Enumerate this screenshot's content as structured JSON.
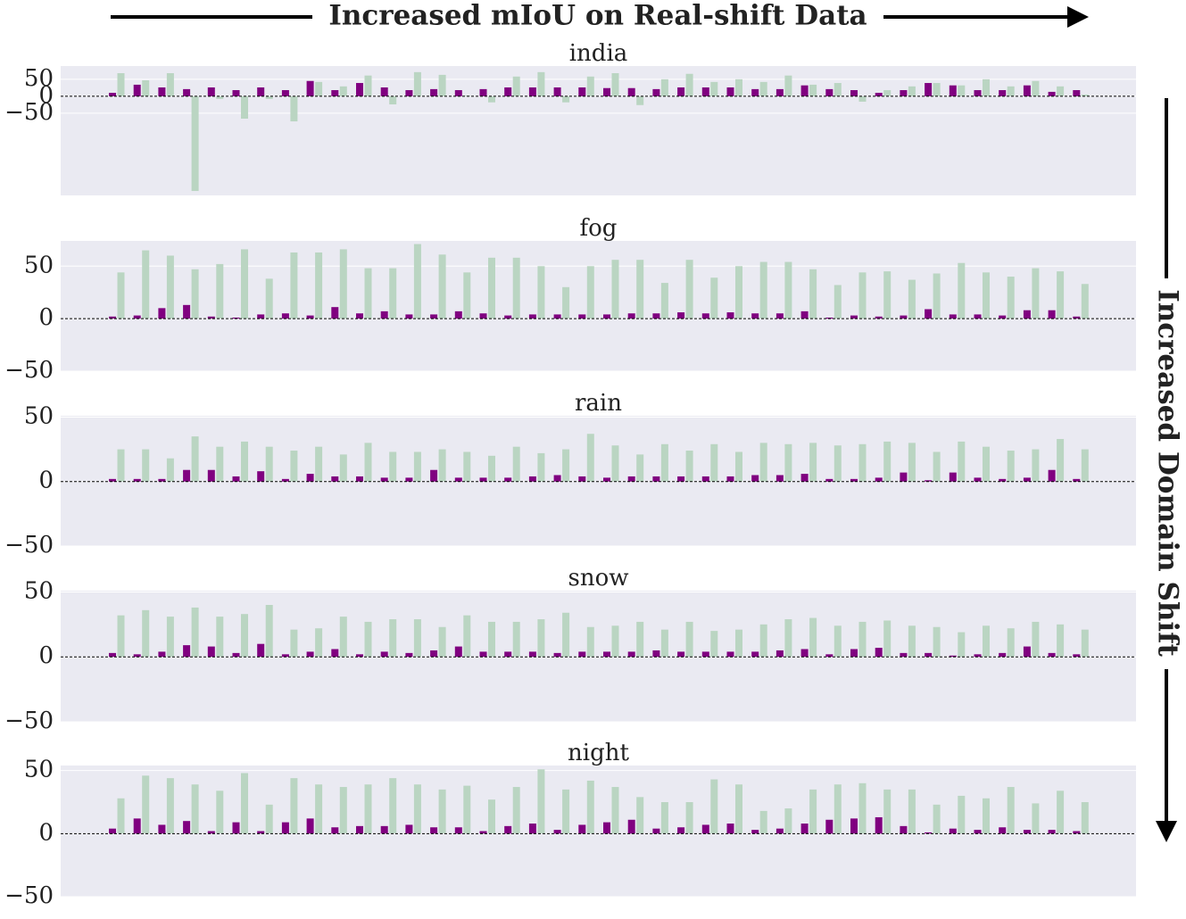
{
  "figure": {
    "title": "Increased mIoU on Real-shift Data",
    "side_label": "Increased Domain Shift"
  },
  "chart_data": [
    {
      "type": "bar",
      "title": "india",
      "categories": [
        null,
        null,
        null,
        null,
        null,
        null,
        null,
        null,
        null,
        null,
        null,
        null,
        null,
        null,
        null,
        null,
        null,
        null,
        null,
        null,
        null,
        null,
        null,
        null,
        null,
        null,
        null,
        null,
        null,
        null,
        null,
        null,
        null,
        null,
        null,
        null,
        null,
        null,
        null,
        null
      ],
      "series": [
        {
          "color": "#800080",
          "values": [
            10,
            34,
            26,
            21,
            26,
            18,
            26,
            18,
            45,
            18,
            39,
            26,
            18,
            21,
            18,
            21,
            26,
            26,
            26,
            26,
            24,
            24,
            21,
            26,
            26,
            26,
            21,
            21,
            32,
            21,
            18,
            10,
            18,
            39,
            32,
            18,
            18,
            32,
            13,
            18
          ]
        },
        {
          "color": "#bad5c2",
          "values": [
            68,
            47,
            68,
            -279,
            -8,
            -66,
            -8,
            -74,
            42,
            29,
            61,
            -24,
            71,
            63,
            2,
            -18,
            58,
            71,
            -18,
            58,
            68,
            -26,
            50,
            66,
            42,
            50,
            42,
            61,
            34,
            39,
            -16,
            18,
            29,
            39,
            32,
            50,
            29,
            45,
            29,
            5
          ]
        }
      ],
      "ylim": [
        -292,
        89
      ],
      "yticks": [
        {
          "value": -50,
          "label": "−50"
        },
        0,
        50
      ],
      "grid": true
    },
    {
      "type": "bar",
      "title": "fog",
      "categories": [
        null,
        null,
        null,
        null,
        null,
        null,
        null,
        null,
        null,
        null,
        null,
        null,
        null,
        null,
        null,
        null,
        null,
        null,
        null,
        null,
        null,
        null,
        null,
        null,
        null,
        null,
        null,
        null,
        null,
        null,
        null,
        null,
        null,
        null,
        null,
        null,
        null,
        null,
        null,
        null
      ],
      "series": [
        {
          "color": "#800080",
          "values": [
            2,
            3,
            10,
            13,
            2,
            1,
            4,
            5,
            3,
            11,
            5,
            7,
            4,
            4,
            7,
            5,
            3,
            4,
            4,
            4,
            4,
            5,
            5,
            6,
            5,
            6,
            5,
            5,
            7,
            1,
            3,
            2,
            3,
            9,
            4,
            4,
            3,
            8,
            8,
            2
          ]
        },
        {
          "color": "#bad5c2",
          "values": [
            44,
            65,
            60,
            47,
            52,
            66,
            38,
            63,
            63,
            66,
            48,
            48,
            71,
            61,
            44,
            58,
            58,
            50,
            30,
            50,
            56,
            56,
            34,
            56,
            39,
            50,
            54,
            54,
            47,
            32,
            44,
            45,
            37,
            43,
            53,
            44,
            40,
            48,
            45,
            33
          ]
        }
      ],
      "ylim": [
        -50,
        74
      ],
      "yticks": [
        {
          "value": -50,
          "label": "−50"
        },
        0,
        50
      ],
      "grid": true
    },
    {
      "type": "bar",
      "title": "rain",
      "categories": [
        null,
        null,
        null,
        null,
        null,
        null,
        null,
        null,
        null,
        null,
        null,
        null,
        null,
        null,
        null,
        null,
        null,
        null,
        null,
        null,
        null,
        null,
        null,
        null,
        null,
        null,
        null,
        null,
        null,
        null,
        null,
        null,
        null,
        null,
        null,
        null,
        null,
        null,
        null,
        null
      ],
      "series": [
        {
          "color": "#800080",
          "values": [
            2,
            2,
            2,
            9,
            9,
            4,
            8,
            2,
            6,
            4,
            4,
            3,
            3,
            9,
            3,
            3,
            3,
            4,
            5,
            4,
            3,
            4,
            4,
            4,
            4,
            4,
            5,
            5,
            6,
            2,
            2,
            3,
            7,
            1,
            7,
            3,
            2,
            3,
            9,
            2
          ]
        },
        {
          "color": "#bad5c2",
          "values": [
            25,
            25,
            18,
            35,
            27,
            31,
            27,
            24,
            27,
            21,
            30,
            23,
            23,
            25,
            23,
            20,
            27,
            22,
            25,
            37,
            28,
            21,
            29,
            24,
            29,
            23,
            30,
            29,
            30,
            28,
            29,
            31,
            30,
            23,
            31,
            27,
            24,
            25,
            33,
            25
          ]
        }
      ],
      "ylim": [
        -50,
        51
      ],
      "yticks": [
        {
          "value": -50,
          "label": "−50"
        },
        0,
        50
      ],
      "grid": true
    },
    {
      "type": "bar",
      "title": "snow",
      "categories": [
        null,
        null,
        null,
        null,
        null,
        null,
        null,
        null,
        null,
        null,
        null,
        null,
        null,
        null,
        null,
        null,
        null,
        null,
        null,
        null,
        null,
        null,
        null,
        null,
        null,
        null,
        null,
        null,
        null,
        null,
        null,
        null,
        null,
        null,
        null,
        null,
        null,
        null,
        null,
        null
      ],
      "series": [
        {
          "color": "#800080",
          "values": [
            3,
            2,
            4,
            9,
            8,
            3,
            10,
            2,
            4,
            6,
            2,
            4,
            3,
            5,
            8,
            4,
            4,
            4,
            3,
            4,
            4,
            4,
            5,
            4,
            4,
            4,
            4,
            5,
            6,
            2,
            6,
            7,
            3,
            3,
            1,
            2,
            3,
            8,
            3,
            2
          ]
        },
        {
          "color": "#bad5c2",
          "values": [
            32,
            36,
            31,
            38,
            31,
            33,
            40,
            21,
            22,
            31,
            27,
            29,
            29,
            23,
            32,
            27,
            27,
            29,
            34,
            23,
            24,
            27,
            21,
            27,
            20,
            21,
            25,
            29,
            30,
            24,
            27,
            28,
            24,
            23,
            19,
            24,
            22,
            27,
            25,
            21
          ]
        }
      ],
      "ylim": [
        -50,
        51
      ],
      "yticks": [
        {
          "value": -50,
          "label": "−50"
        },
        0,
        50
      ],
      "grid": true
    },
    {
      "type": "bar",
      "title": "night",
      "categories": [
        null,
        null,
        null,
        null,
        null,
        null,
        null,
        null,
        null,
        null,
        null,
        null,
        null,
        null,
        null,
        null,
        null,
        null,
        null,
        null,
        null,
        null,
        null,
        null,
        null,
        null,
        null,
        null,
        null,
        null,
        null,
        null,
        null,
        null,
        null,
        null,
        null,
        null,
        null,
        null
      ],
      "series": [
        {
          "color": "#800080",
          "values": [
            4,
            12,
            7,
            10,
            2,
            9,
            2,
            9,
            12,
            5,
            6,
            6,
            7,
            5,
            5,
            2,
            6,
            8,
            3,
            7,
            9,
            11,
            4,
            5,
            7,
            8,
            3,
            4,
            8,
            11,
            12,
            13,
            6,
            1,
            4,
            3,
            5,
            3,
            3,
            2
          ]
        },
        {
          "color": "#bad5c2",
          "values": [
            28,
            46,
            44,
            39,
            34,
            48,
            23,
            44,
            39,
            37,
            39,
            44,
            39,
            35,
            38,
            27,
            37,
            51,
            35,
            42,
            37,
            29,
            25,
            25,
            43,
            39,
            18,
            20,
            35,
            39,
            40,
            35,
            35,
            23,
            30,
            28,
            37,
            24,
            34,
            25
          ]
        }
      ],
      "ylim": [
        -50,
        54
      ],
      "yticks": [
        {
          "value": -50,
          "label": "−50"
        },
        0,
        50
      ],
      "grid": true
    }
  ]
}
